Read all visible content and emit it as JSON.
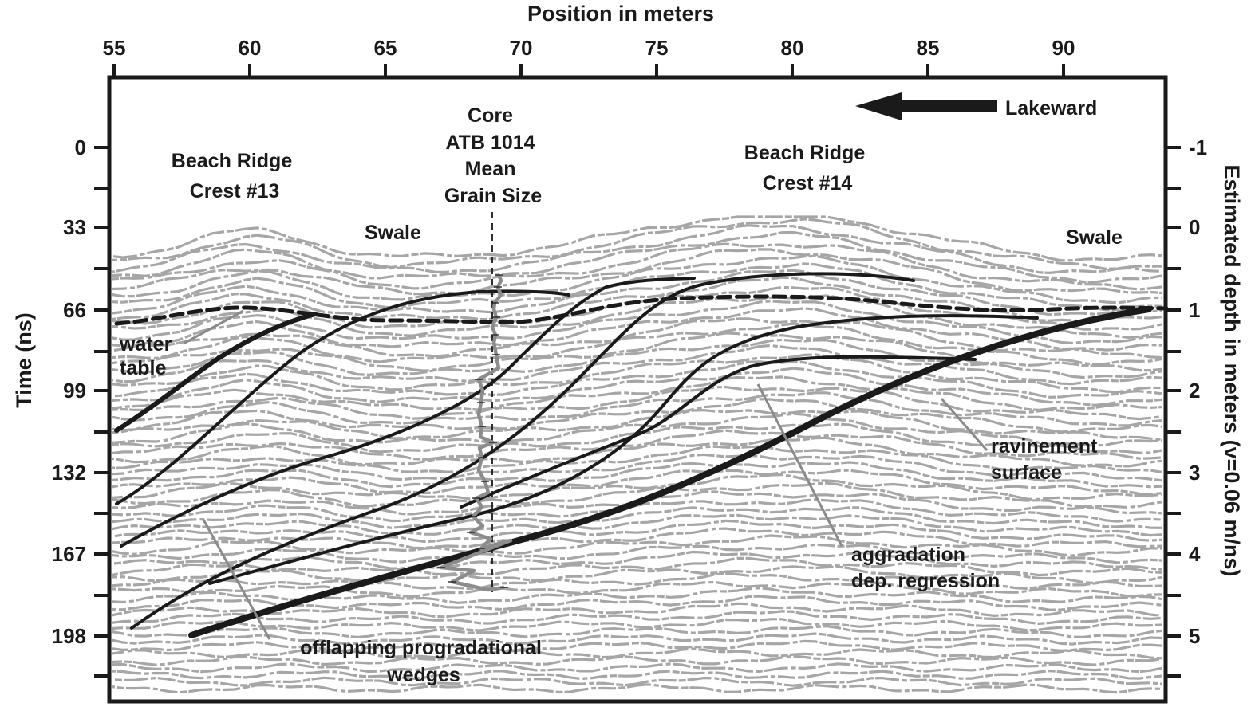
{
  "figure": {
    "top_axis": {
      "title": "Position in meters",
      "range": [
        55,
        93.5
      ],
      "ticks": [
        55,
        60,
        65,
        70,
        75,
        80,
        85,
        90
      ]
    },
    "left_axis": {
      "title": "Time (ns)",
      "ticks": [
        0,
        33,
        66,
        99,
        132,
        167,
        198
      ]
    },
    "right_axis": {
      "title": "Estimated depth in meters (v=0.06 m/ns)",
      "ticks": [
        -1,
        0,
        1,
        2,
        3,
        4,
        5
      ]
    },
    "labels": {
      "lakeward": "Lakeward",
      "crest13": [
        "Beach Ridge",
        "Crest #13"
      ],
      "crest14": [
        "Beach Ridge",
        "Crest #14"
      ],
      "core": [
        "Core",
        "ATB 1014",
        "Mean",
        "Grain Size"
      ],
      "swale_left": "Swale",
      "swale_right": "Swale",
      "water_table": [
        "water",
        "table"
      ],
      "ravinement": [
        "ravinement",
        "surface"
      ],
      "aggradation": [
        "aggradation",
        "dep. regression"
      ],
      "offlapping": [
        "offlapping progradational",
        "wedges"
      ]
    },
    "colors": {
      "ink": "#1a1a1a",
      "radar": "#a6a6a6",
      "leader": "#8a8a8a"
    }
  }
}
